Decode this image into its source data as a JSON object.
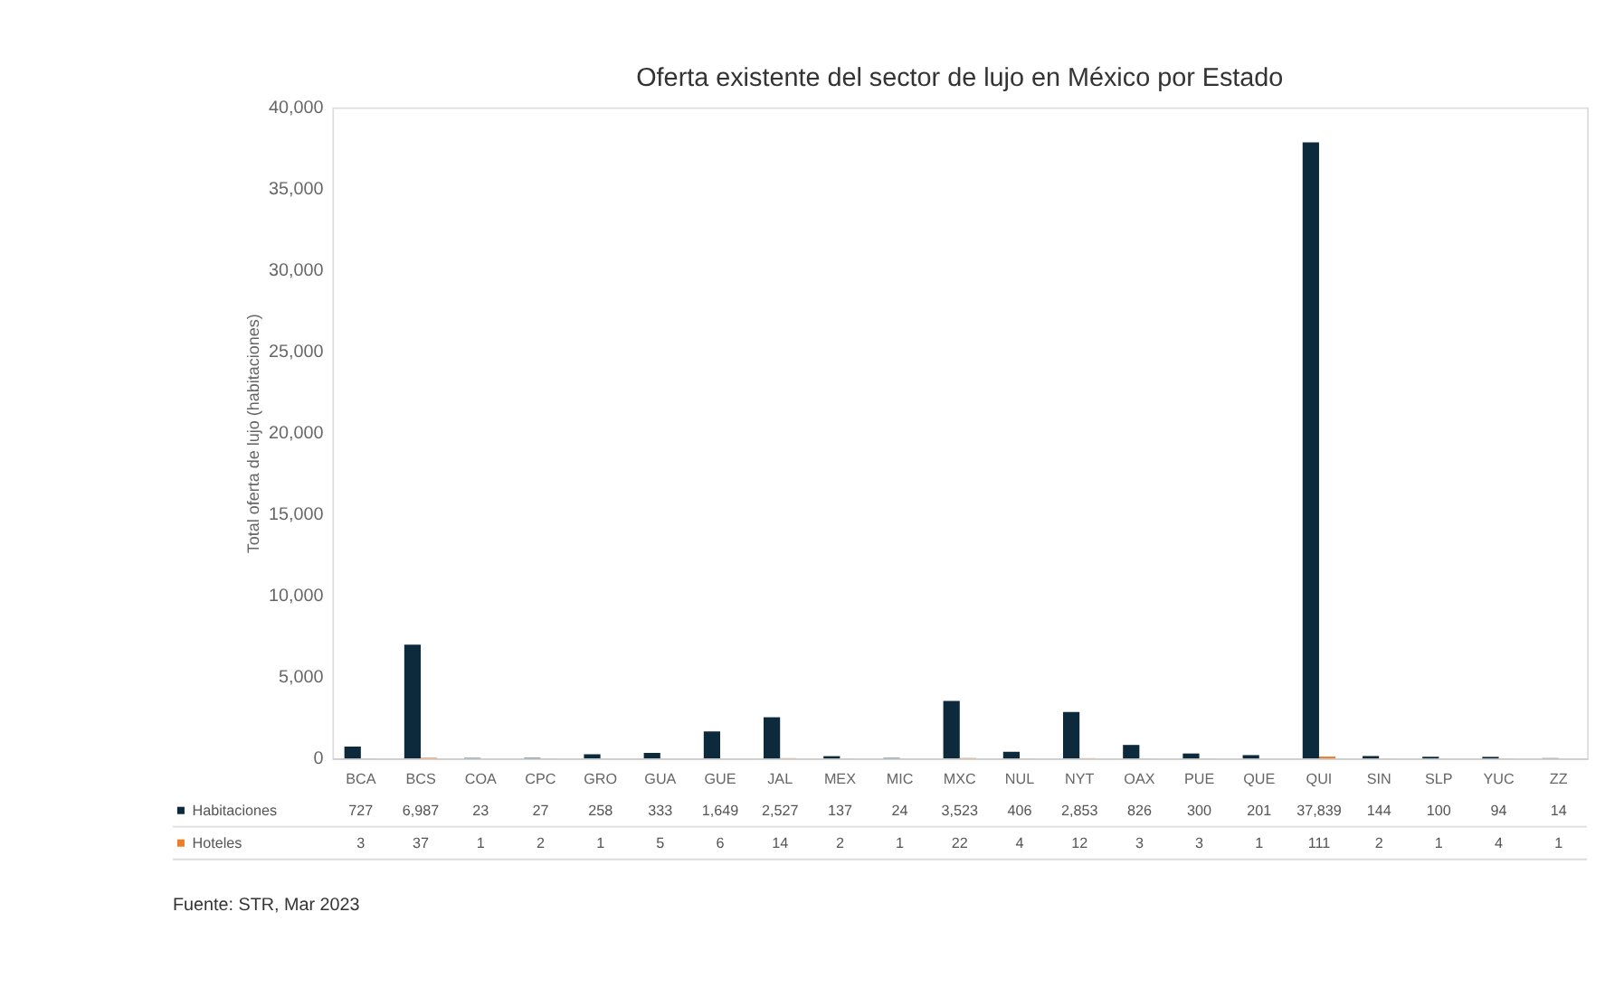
{
  "chart_data": {
    "type": "bar",
    "title": "Oferta existente del sector de lujo en México por Estado",
    "ylabel": "Total oferta de lujo (habitaciones)",
    "categories": [
      "BCA",
      "BCS",
      "COA",
      "CPC",
      "GRO",
      "GUA",
      "GUE",
      "JAL",
      "MEX",
      "MIC",
      "MXC",
      "NUL",
      "NYT",
      "OAX",
      "PUE",
      "QUE",
      "QUI",
      "SIN",
      "SLP",
      "YUC",
      "ZZ"
    ],
    "series": [
      {
        "name": "Habitaciones",
        "color": "#0d2a3c",
        "values": [
          727,
          6987,
          23,
          27,
          258,
          333,
          1649,
          2527,
          137,
          24,
          3523,
          406,
          2853,
          826,
          300,
          201,
          37839,
          144,
          100,
          94,
          14
        ],
        "value_labels": [
          "727",
          "6,987",
          "23",
          "27",
          "258",
          "333",
          "1,649",
          "2,527",
          "137",
          "24",
          "3,523",
          "406",
          "2,853",
          "826",
          "300",
          "201",
          "37,839",
          "144",
          "100",
          "94",
          "14"
        ]
      },
      {
        "name": "Hoteles",
        "color": "#f07c28",
        "values": [
          3,
          37,
          1,
          2,
          1,
          5,
          6,
          14,
          2,
          1,
          22,
          4,
          12,
          3,
          3,
          1,
          111,
          2,
          1,
          4,
          1
        ],
        "value_labels": [
          "3",
          "37",
          "1",
          "2",
          "1",
          "5",
          "6",
          "14",
          "2",
          "1",
          "22",
          "4",
          "12",
          "3",
          "3",
          "1",
          "111",
          "2",
          "1",
          "4",
          "1"
        ]
      }
    ],
    "ylim": [
      0,
      40000
    ],
    "yticks": [
      0,
      {
        "value": 5000,
        "label": "5,000"
      },
      {
        "value": 10000,
        "label": "10,000"
      },
      {
        "value": 15000,
        "label": "15,000"
      },
      {
        "value": 20000,
        "label": "20,000"
      },
      {
        "value": 25000,
        "label": "25,000"
      },
      {
        "value": 30000,
        "label": "30,000"
      },
      {
        "value": 35000,
        "label": "35,000"
      },
      {
        "value": 40000,
        "label": "40,000"
      }
    ],
    "grid": false,
    "legend": "bottom left",
    "annotations": [
      "Fuente: STR, Mar 2023"
    ]
  }
}
